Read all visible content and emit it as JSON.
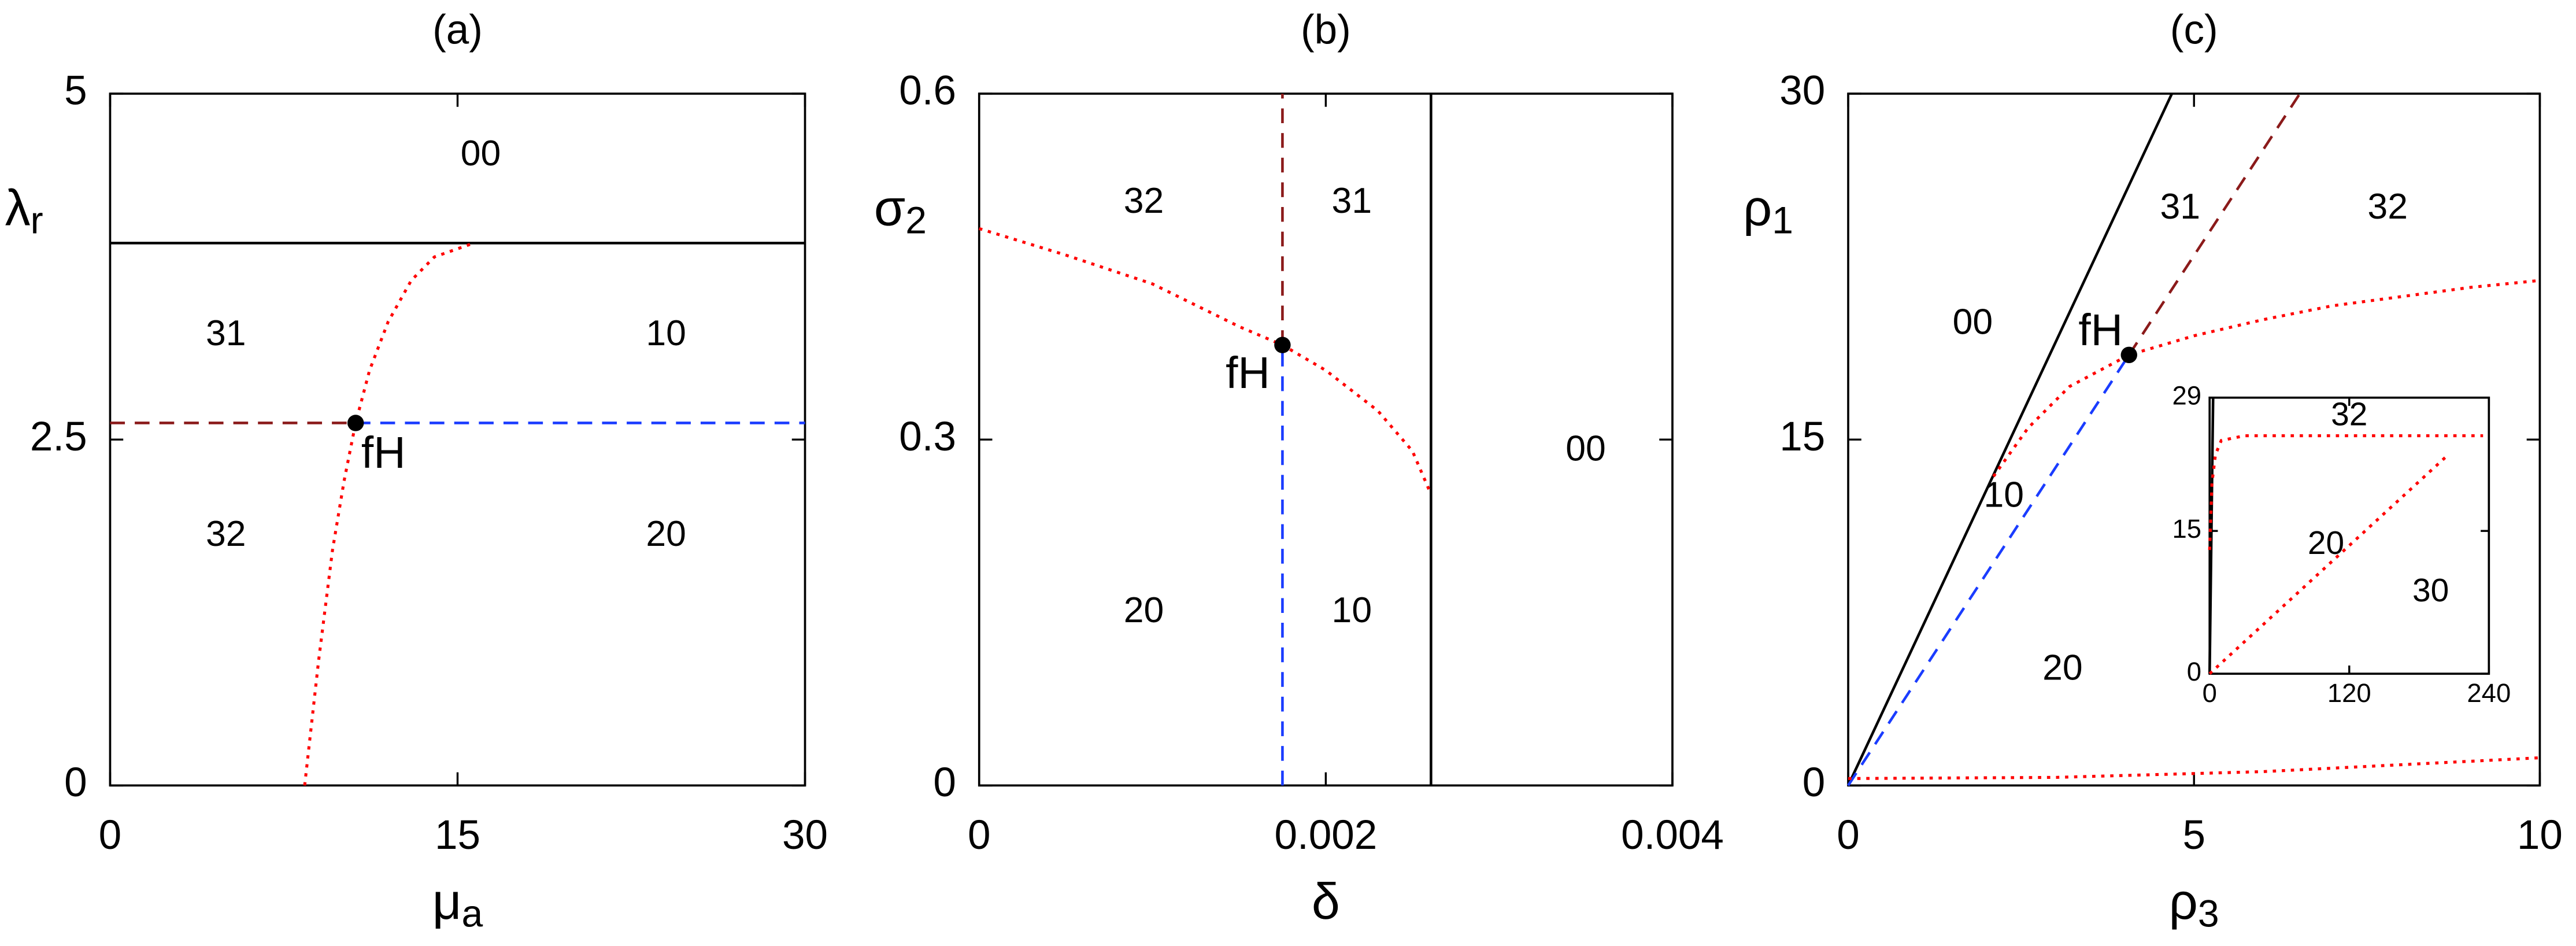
{
  "chart_data": [
    {
      "type": "line",
      "title": "(a)",
      "xlabel": "μ",
      "xlabel_sub": "a",
      "ylabel": "λ",
      "ylabel_sub": "r",
      "xlim": [
        0,
        30
      ],
      "ylim": [
        0,
        5
      ],
      "xticks": [
        0,
        15,
        30
      ],
      "yticks": [
        0,
        2.5,
        5
      ],
      "series": [
        {
          "color": "#000000",
          "dash": "solid",
          "x": [
            0,
            30
          ],
          "values": [
            3.92,
            3.92
          ]
        },
        {
          "color": "#8b1a1a",
          "dash": "dashed",
          "x": [
            0,
            10.6
          ],
          "values": [
            2.62,
            2.62
          ]
        },
        {
          "color": "#1a3cff",
          "dash": "dashed",
          "x": [
            10.6,
            30
          ],
          "values": [
            2.62,
            2.62
          ]
        },
        {
          "color": "#ff0000",
          "dash": "dotted",
          "x": [
            8.4,
            9.0,
            9.6,
            10.1,
            10.6,
            11.2,
            12,
            13,
            14,
            15.7
          ],
          "values": [
            0,
            0.9,
            1.7,
            2.2,
            2.62,
            3.0,
            3.35,
            3.65,
            3.82,
            3.92
          ]
        }
      ],
      "points": [
        {
          "x": 10.6,
          "y": 2.62
        }
      ],
      "annotations": [
        {
          "text": "00",
          "x": 16,
          "y": 4.55
        },
        {
          "text": "31",
          "x": 5,
          "y": 3.25
        },
        {
          "text": "10",
          "x": 24,
          "y": 3.25
        },
        {
          "text": "32",
          "x": 5,
          "y": 1.8
        },
        {
          "text": "20",
          "x": 24,
          "y": 1.8
        },
        {
          "text": "fH",
          "x": 11.8,
          "y": 2.38,
          "size": "large"
        }
      ]
    },
    {
      "type": "line",
      "title": "(b)",
      "xlabel": "δ",
      "ylabel": "σ",
      "ylabel_sub": "2",
      "xlim": [
        0,
        0.004
      ],
      "ylim": [
        0,
        0.6
      ],
      "xticks": [
        0,
        0.002,
        0.004
      ],
      "yticks": [
        0,
        0.3,
        0.6
      ],
      "series": [
        {
          "color": "#000000",
          "dash": "solid",
          "x": [
            0.002607,
            0.002607
          ],
          "values": [
            0,
            0.6
          ]
        },
        {
          "color": "#8b1a1a",
          "dash": "dashed",
          "x": [
            0.00175,
            0.00175
          ],
          "values": [
            0.382,
            0.6
          ]
        },
        {
          "color": "#1a3cff",
          "dash": "dashed",
          "x": [
            0.00175,
            0.00175
          ],
          "values": [
            0,
            0.382
          ]
        },
        {
          "color": "#ff0000",
          "dash": "dotted",
          "x": [
            0,
            0.0005,
            0.001,
            0.0015,
            0.00175,
            0.002,
            0.0023,
            0.0025,
            0.0026
          ],
          "values": [
            0.483,
            0.46,
            0.435,
            0.398,
            0.382,
            0.36,
            0.325,
            0.29,
            0.255
          ]
        }
      ],
      "points": [
        {
          "x": 0.00175,
          "y": 0.382
        }
      ],
      "annotations": [
        {
          "text": "32",
          "x": 0.00095,
          "y": 0.505
        },
        {
          "text": "31",
          "x": 0.00215,
          "y": 0.505
        },
        {
          "text": "00",
          "x": 0.0035,
          "y": 0.29
        },
        {
          "text": "20",
          "x": 0.00095,
          "y": 0.15
        },
        {
          "text": "10",
          "x": 0.00215,
          "y": 0.15
        },
        {
          "text": "fH",
          "x": 0.00155,
          "y": 0.355,
          "size": "large"
        }
      ]
    },
    {
      "type": "line",
      "title": "(c)",
      "xlabel": "ρ",
      "xlabel_sub": "3",
      "ylabel": "ρ",
      "ylabel_sub": "1",
      "xlim": [
        0,
        10
      ],
      "ylim": [
        0,
        30
      ],
      "xticks": [
        0,
        5,
        10
      ],
      "yticks": [
        0,
        15,
        30
      ],
      "series": [
        {
          "color": "#000000",
          "dash": "solid",
          "x": [
            0,
            4.68
          ],
          "values": [
            0,
            30
          ]
        },
        {
          "color": "#1a3cff",
          "dash": "dashed",
          "x": [
            0,
            4.06
          ],
          "values": [
            0,
            18.67
          ]
        },
        {
          "color": "#8b1a1a",
          "dash": "dashed",
          "x": [
            4.06,
            6.53
          ],
          "values": [
            18.67,
            30
          ]
        },
        {
          "color": "#ff0000",
          "dash": "dotted",
          "x": [
            2.1,
            2.6,
            3.2,
            4.06,
            5,
            6,
            7,
            8,
            9,
            10
          ],
          "values": [
            13.4,
            15.5,
            17.3,
            18.67,
            19.5,
            20.2,
            20.8,
            21.2,
            21.6,
            21.9
          ]
        },
        {
          "color": "#ff0000",
          "dash": "dotted",
          "x": [
            0,
            3,
            6,
            10
          ],
          "values": [
            0.3,
            0.35,
            0.6,
            1.2
          ]
        }
      ],
      "points": [
        {
          "x": 4.06,
          "y": 18.67
        }
      ],
      "annotations": [
        {
          "text": "00",
          "x": 1.8,
          "y": 20
        },
        {
          "text": "31",
          "x": 4.8,
          "y": 25
        },
        {
          "text": "32",
          "x": 7.8,
          "y": 25
        },
        {
          "text": "10",
          "x": 2.25,
          "y": 12.5
        },
        {
          "text": "20",
          "x": 3.1,
          "y": 5
        },
        {
          "text": "fH",
          "x": 3.65,
          "y": 19.6,
          "size": "large"
        }
      ],
      "inset": {
        "type": "line",
        "xlim": [
          0,
          240
        ],
        "ylim": [
          0,
          29
        ],
        "xticks": [
          0,
          120,
          240
        ],
        "yticks": [
          0,
          15,
          29
        ],
        "series": [
          {
            "color": "#000000",
            "dash": "solid",
            "x": [
              0,
              3
            ],
            "values": [
              0,
              29
            ]
          },
          {
            "color": "#ff0000",
            "dash": "dotted",
            "x": [
              0,
              2,
              5,
              10,
              30,
              100,
              200,
              235
            ],
            "values": [
              13,
              20,
              23,
              24.5,
              25,
              25,
              25,
              25
            ]
          },
          {
            "color": "#ff0000",
            "dash": "dotted",
            "x": [
              0,
              205
            ],
            "values": [
              0,
              23
            ]
          }
        ],
        "annotations": [
          {
            "text": "32",
            "x": 120,
            "y": 27
          },
          {
            "text": "20",
            "x": 100,
            "y": 13.5
          },
          {
            "text": "30",
            "x": 190,
            "y": 8.5
          }
        ]
      }
    }
  ]
}
